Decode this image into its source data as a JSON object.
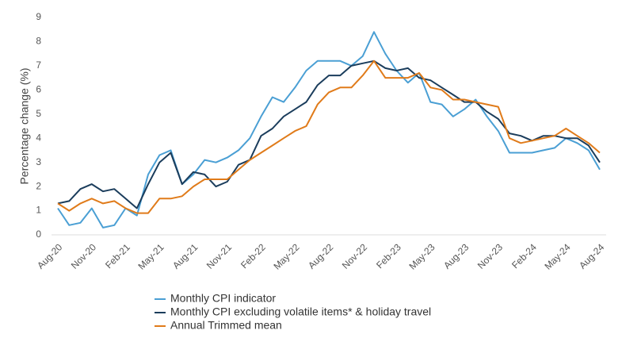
{
  "chart_data": {
    "type": "line",
    "y_label": "Percentage change (%)",
    "categories": [
      "Aug-20",
      null,
      null,
      "Nov-20",
      null,
      null,
      "Feb-21",
      null,
      null,
      "May-21",
      null,
      null,
      "Aug-21",
      null,
      null,
      "Nov-21",
      null,
      null,
      "Feb-22",
      null,
      null,
      "May-22",
      null,
      null,
      "Aug-22",
      null,
      null,
      "Nov-22",
      null,
      null,
      "Feb-23",
      null,
      null,
      "May-23",
      null,
      null,
      "Aug-23",
      null,
      null,
      "Nov-23",
      null,
      null,
      "Feb-24",
      null,
      null,
      "May-24",
      null,
      null,
      "Aug-24"
    ],
    "ylim": [
      0,
      9
    ],
    "yticks": [
      0,
      1,
      2,
      3,
      4,
      5,
      6,
      7,
      8,
      9
    ],
    "grid": false,
    "legend": "bottom",
    "series": [
      {
        "name": "Monthly CPI indicator",
        "color": "#4a9fd4",
        "values": [
          1.1,
          0.4,
          0.5,
          1.1,
          0.3,
          0.4,
          1.1,
          0.8,
          2.5,
          3.3,
          3.5,
          2.1,
          2.5,
          3.1,
          3.0,
          3.2,
          3.5,
          4.0,
          4.9,
          5.7,
          5.5,
          6.1,
          6.8,
          7.2,
          7.2,
          7.2,
          7.0,
          7.4,
          8.4,
          7.5,
          6.8,
          6.3,
          6.7,
          5.5,
          5.4,
          4.9,
          5.2,
          5.6,
          4.9,
          4.3,
          3.4,
          3.4,
          3.4,
          3.5,
          3.6,
          4.0,
          3.8,
          3.5,
          2.7
        ]
      },
      {
        "name": "Monthly CPI excluding volatile items* & holiday travel",
        "color": "#1b3d5c",
        "values": [
          1.3,
          1.4,
          1.9,
          2.1,
          1.8,
          1.9,
          1.5,
          1.1,
          2.1,
          3.0,
          3.4,
          2.1,
          2.6,
          2.5,
          2.0,
          2.2,
          2.9,
          3.1,
          4.1,
          4.4,
          4.9,
          5.2,
          5.5,
          6.2,
          6.6,
          6.6,
          7.0,
          7.1,
          7.2,
          6.9,
          6.8,
          6.9,
          6.5,
          6.4,
          6.1,
          5.8,
          5.5,
          5.5,
          5.1,
          4.8,
          4.2,
          4.1,
          3.9,
          4.1,
          4.1,
          4.0,
          4.0,
          3.7,
          3.0
        ]
      },
      {
        "name": "Annual Trimmed mean",
        "color": "#e07b1a",
        "values": [
          1.3,
          1.0,
          1.3,
          1.5,
          1.3,
          1.4,
          1.1,
          0.9,
          0.9,
          1.5,
          1.5,
          1.6,
          2.0,
          2.3,
          2.3,
          2.3,
          2.7,
          3.1,
          3.4,
          3.7,
          4.0,
          4.3,
          4.5,
          5.4,
          5.9,
          6.1,
          6.1,
          6.6,
          7.2,
          6.5,
          6.5,
          6.5,
          6.7,
          6.1,
          6.0,
          5.6,
          5.6,
          5.5,
          5.4,
          5.3,
          4.0,
          3.8,
          3.9,
          4.0,
          4.1,
          4.4,
          4.1,
          3.8,
          3.4
        ]
      }
    ]
  }
}
